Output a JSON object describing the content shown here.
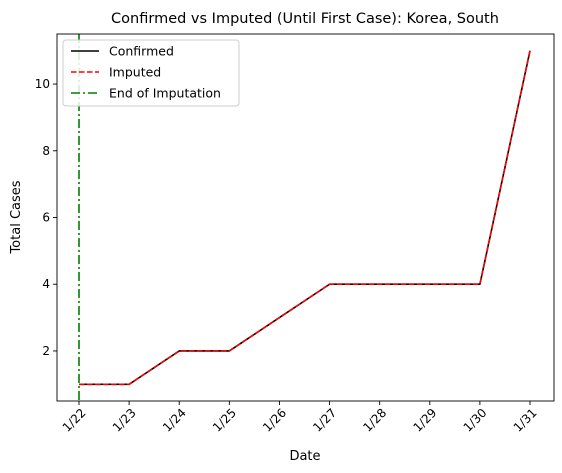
{
  "chart_data": {
    "type": "line",
    "title": "Confirmed vs Imputed (Until First Case): Korea, South",
    "xlabel": "Date",
    "ylabel": "Total Cases",
    "categories": [
      "1/22",
      "1/23",
      "1/24",
      "1/25",
      "1/26",
      "1/27",
      "1/28",
      "1/29",
      "1/30",
      "1/31"
    ],
    "yticks": [
      2,
      4,
      6,
      8,
      10
    ],
    "ylim": [
      0.5,
      11.5
    ],
    "series": [
      {
        "name": "Confirmed",
        "values": [
          1,
          1,
          2,
          2,
          3,
          4,
          4,
          4,
          4,
          11
        ],
        "color": "#000000",
        "style": "solid"
      },
      {
        "name": "Imputed",
        "values": [
          1,
          1,
          2,
          2,
          3,
          4,
          4,
          4,
          4,
          11
        ],
        "color": "#ff0000",
        "style": "dashed"
      }
    ],
    "vline": {
      "name": "End of Imputation",
      "x": "1/22",
      "color": "#008000",
      "style": "dashdot"
    },
    "legend_position": "top-left",
    "grid": false
  }
}
